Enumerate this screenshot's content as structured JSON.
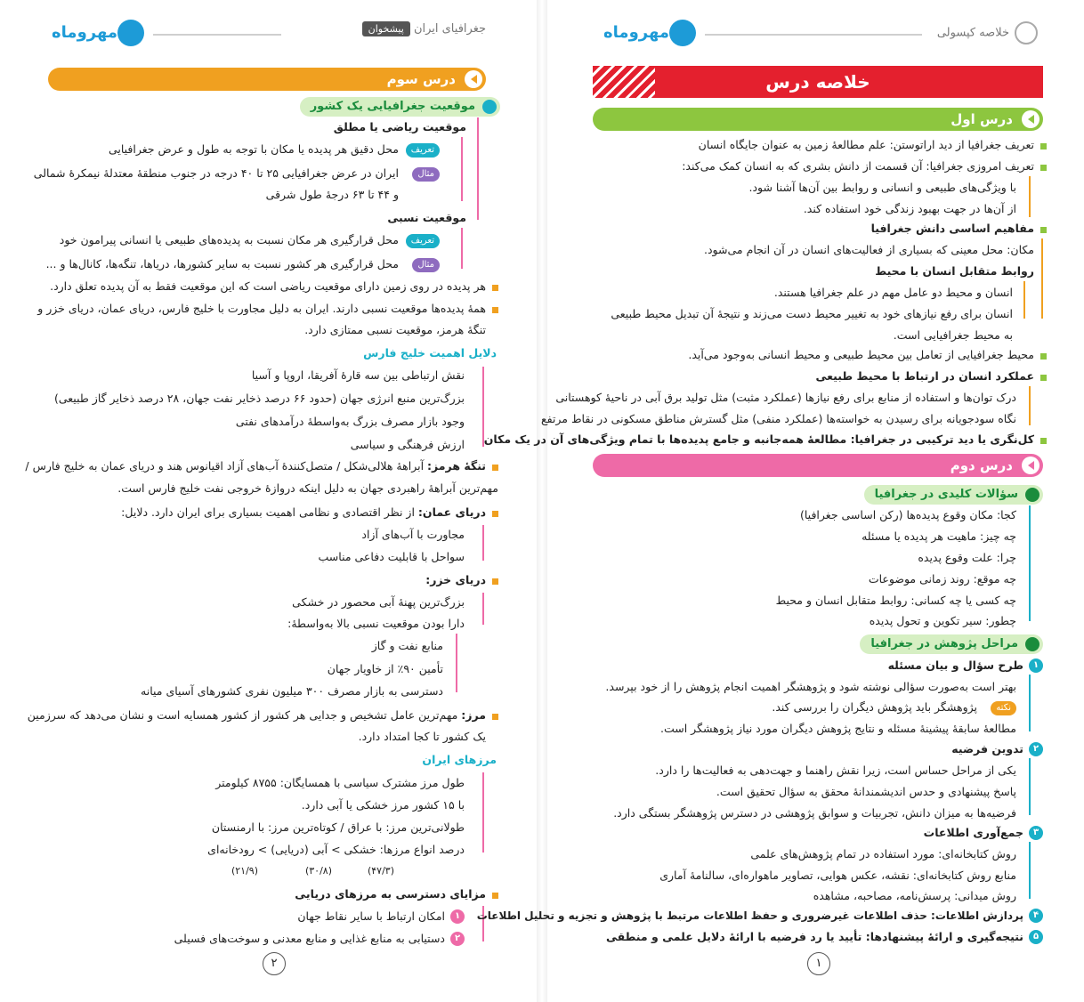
{
  "left_page": {
    "header": {
      "logo": "مهروماه",
      "book_badge": "پیشخوان",
      "book_title": "جغرافیای ایران"
    },
    "lesson_bar": "درس سوم",
    "section1_title": "موقعیت جغرافیایی یک کشور",
    "abs_title": "موقعیت ریاضی یا مطلق",
    "tag_def": "تعریف",
    "tag_ex": "مثال",
    "abs_def": "محل دقیق هر پدیده یا مکان با توجه به طول و عرض جغرافیایی",
    "abs_ex1": "ایران در عرض جغرافیایی ۲۵ تا ۴۰ درجه در جنوب منطقهٔ معتدلهٔ نیمکرهٔ شمالی",
    "abs_ex2": "و ۴۴ تا ۶۳ درجهٔ طول شرقی",
    "rel_title": "موقعیت نسبی",
    "rel_def": "محل قرارگیری هر مکان نسبت به پدیده‌های طبیعی یا انسانی پیرامون خود",
    "rel_ex": "محل قرارگیری هر کشور نسبت به سایر کشورها، دریاها، تنگه‌ها، کانال‌ها و ...",
    "b1": "هر پدیده در روی زمین دارای موقعیت ریاضی است که این موقعیت فقط به آن پدیده تعلق دارد.",
    "b2a": "همهٔ پدیده‌ها موقعیت نسبی دارند. ایران به دلیل مجاورت با خلیج فارس، دریای عمان، دریای خزر و",
    "b2b": "تنگهٔ هرمز، موقعیت نسبی ممتازی دارد.",
    "gulf_title": "دلایل اهمیت خلیج فارس",
    "gulf": [
      "نقش ارتباطی بین سه قارهٔ آفریقا، اروپا و آسیا",
      "بزرگ‌ترین منبع انرژی جهان (حدود ۶۶ درصد ذخایر نفت جهان، ۲۸ درصد ذخایر گاز طبیعی)",
      "وجود بازار مصرف بزرگ به‌واسطهٔ درآمدهای نفتی",
      "ارزش فرهنگی و سیاسی"
    ],
    "hormoz_label": "تنگهٔ هرمز:",
    "hormoz_a": "آبراههٔ هلالی‌شکل / متصل‌کنندهٔ آب‌های آزاد اقیانوس هند و دریای عمان به خلیج فارس /",
    "hormoz_b": "مهم‌ترین آبراههٔ راهبردی جهان به دلیل اینکه دروازهٔ خروجی نفت خلیج فارس است.",
    "oman_label": "دریای عمان:",
    "oman_text": "از نظر اقتصادی و نظامی اهمیت بسیاری برای ایران دارد. دلایل:",
    "oman_items": [
      "مجاورت با آب‌های آزاد",
      "سواحل با قابلیت دفاعی مناسب"
    ],
    "caspian_label": "دریای خزر:",
    "caspian_items": [
      "بزرگ‌ترین پهنهٔ آبی محصور در خشکی",
      "دارا بودن موقعیت نسبی بالا به‌واسطهٔ:"
    ],
    "caspian_sub": [
      "منابع نفت و گاز",
      "تأمین ۹۰٪ از خاویار جهان",
      "دسترسی به بازار مصرف ۳۰۰ میلیون نفری کشورهای آسیای میانه"
    ],
    "border_label": "مرز:",
    "border_a": "مهم‌ترین عامل تشخیص و جدایی هر کشور از کشور همسایه است و نشان می‌دهد که سرزمین",
    "border_b": "یک کشور تا کجا امتداد دارد.",
    "iran_border_title": "مرزهای ایران",
    "iran_border": [
      "طول مرز مشترک سیاسی با همسایگان: ۸۷۵۵ کیلومتر",
      "با ۱۵ کشور مرز خشکی یا آبی دارد.",
      "طولانی‌ترین مرز: با عراق / کوتاه‌ترین مرز: با ارمنستان",
      "درصد انواع مرزها: خشکی > آبی (دریایی) > رودخانه‌ای"
    ],
    "border_pct": [
      "(۴۷/۳)",
      "(۳۰/۸)",
      "(۲۱/۹)"
    ],
    "sea_title": "مزایای دسترسی به مرزهای دریایی",
    "sea_items": [
      "امکان ارتباط با سایر نقاط جهان",
      "دستیابی به منابع غذایی و منابع معدنی و سوخت‌های فسیلی"
    ],
    "sea_nums": [
      "۱",
      "۲"
    ],
    "page_number": "۲"
  },
  "right_page": {
    "header": {
      "logo": "مهروماه",
      "title": "خلاصه کپسولی"
    },
    "banner": "خلاصه درس",
    "lesson1_bar": "درس اول",
    "l1_def1": "تعریف جغرافیا از دید اراتوستن: علم مطالعهٔ زمین به عنوان جایگاه انسان",
    "l1_def2": "تعریف امروزی جغرافیا: آن قسمت از دانش بشری که به انسان کمک می‌کند:",
    "l1_def2_items": [
      "با ویژگی‌های طبیعی و انسانی و روابط بین آن‌ها آشنا شود.",
      "از آن‌ها در جهت بهبود زندگی خود استفاده کند."
    ],
    "l1_concepts": "مفاهیم اساسی دانش جغرافیا",
    "l1_place": "مکان: محل معینی که بسیاری از فعالیت‌های انسان در آن انجام می‌شود.",
    "l1_rel": "روابط متقابل انسان با محیط",
    "l1_rel_items": [
      "انسان و محیط دو عامل مهم در علم جغرافیا هستند.",
      "انسان برای رفع نیازهای خود به تغییر محیط دست می‌زند و نتیجهٔ آن تبدیل محیط طبیعی",
      "به محیط جغرافیایی است."
    ],
    "l1_env": "محیط جغرافیایی از تعامل بین محیط طبیعی و محیط انسانی به‌وجود می‌آید.",
    "l1_perf": "عملکرد انسان در ارتباط با محیط طبیعی",
    "l1_perf_items": [
      "درک توان‌ها و استفاده از منابع برای رفع نیازها (عملکرد مثبت) مثل تولید برق آبی در ناحیهٔ کوهستانی",
      "نگاه سودجویانه برای رسیدن به خواسته‌ها (عملکرد منفی) مثل گسترش مناطق مسکونی در نقاط مرتفع"
    ],
    "l1_whole": "کل‌نگری یا دید ترکیبی در جغرافیا: مطالعهٔ همه‌جانبه و جامع پدیده‌ها با تمام ویژگی‌های آن در یک مکان",
    "lesson2_bar": "درس دوم",
    "q_title": "سؤالات کلیدی در جغرافیا",
    "q_items": [
      "کجا: مکان وقوع پدیده‌ها (رکن اساسی جغرافیا)",
      "چه چیز: ماهیت هر پدیده یا مسئله",
      "چرا: علت وقوع پدیده",
      "چه موقع: روند زمانی موضوعات",
      "چه کسی یا چه کسانی: روابط متقابل انسان و محیط",
      "چطور: سیر تکوین و تحول پدیده"
    ],
    "steps_title": "مراحل پژوهش در جغرافیا",
    "s1": "طرح سؤال و بیان مسئله",
    "s1_items": [
      "بهتر است به‌صورت سؤالی نوشته شود و پژوهشگر اهمیت انجام پژوهش را از خود بپرسد.",
      "پژوهشگر باید پژوهش دیگران را بررسی کند.",
      "مطالعهٔ سابقهٔ پیشینهٔ مسئله و نتایج پژوهش دیگران مورد نیاز پژوهشگر است."
    ],
    "note_tag": "نکته",
    "s2": "تدوین فرضیه",
    "s2_items": [
      "یکی از مراحل حساس است، زیرا نقش راهنما و جهت‌دهی به فعالیت‌ها را دارد.",
      "پاسخ پیشنهادی و حدس اندیشمندانهٔ محقق به سؤال تحقیق است.",
      "فرضیه‌ها به میزان دانش، تجربیات و سوابق پژوهشی در دسترس پژوهشگر بستگی دارد."
    ],
    "s3": "جمع‌آوری اطلاعات",
    "s3_items": [
      "روش کتابخانه‌ای: مورد استفاده در تمام پژوهش‌های علمی",
      "منابع روش کتابخانه‌ای: نقشه، عکس هوایی، تصاویر ماهواره‌ای، سالنامهٔ آماری",
      "روش میدانی: پرسش‌نامه، مصاحبه، مشاهده"
    ],
    "s4": "پردازش اطلاعات: حذف اطلاعات غیرضروری و حفظ اطلاعات مرتبط با پژوهش و تجزیه و تحلیل اطلاعات",
    "s5": "نتیجه‌گیری و ارائهٔ پیشنهادها: تأیید یا رد فرضیه با ارائهٔ دلایل علمی و منطقی",
    "step_nums": [
      "۱",
      "۲",
      "۳",
      "۴",
      "۵"
    ],
    "page_number": "۱"
  },
  "colors": {
    "orange": "#f0a020",
    "red": "#e4202e",
    "green": "#8dc63f",
    "pink": "#ee6aa7",
    "teal": "#1ab0c8",
    "purple": "#8e6bbf",
    "blue": "#1d9bd7"
  }
}
